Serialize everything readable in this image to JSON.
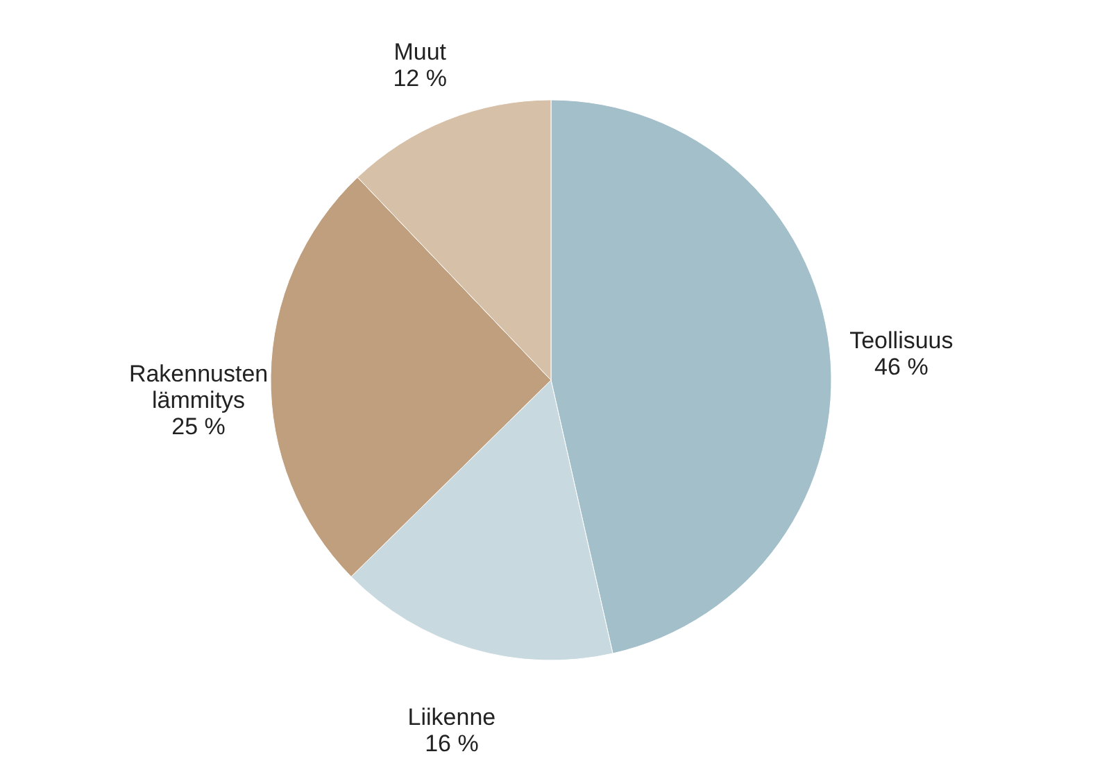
{
  "chart_data": {
    "type": "pie",
    "categories": [
      "Teollisuus",
      "Liikenne",
      "Rakennusten lämmitys",
      "Muut"
    ],
    "values": [
      46,
      16,
      25,
      12
    ],
    "colors": [
      "#a3bfca",
      "#c8d9e0",
      "#c09f7e",
      "#d6c1a8"
    ],
    "value_labels": [
      "46 %",
      "16 %",
      "25 %",
      "12 %"
    ]
  }
}
